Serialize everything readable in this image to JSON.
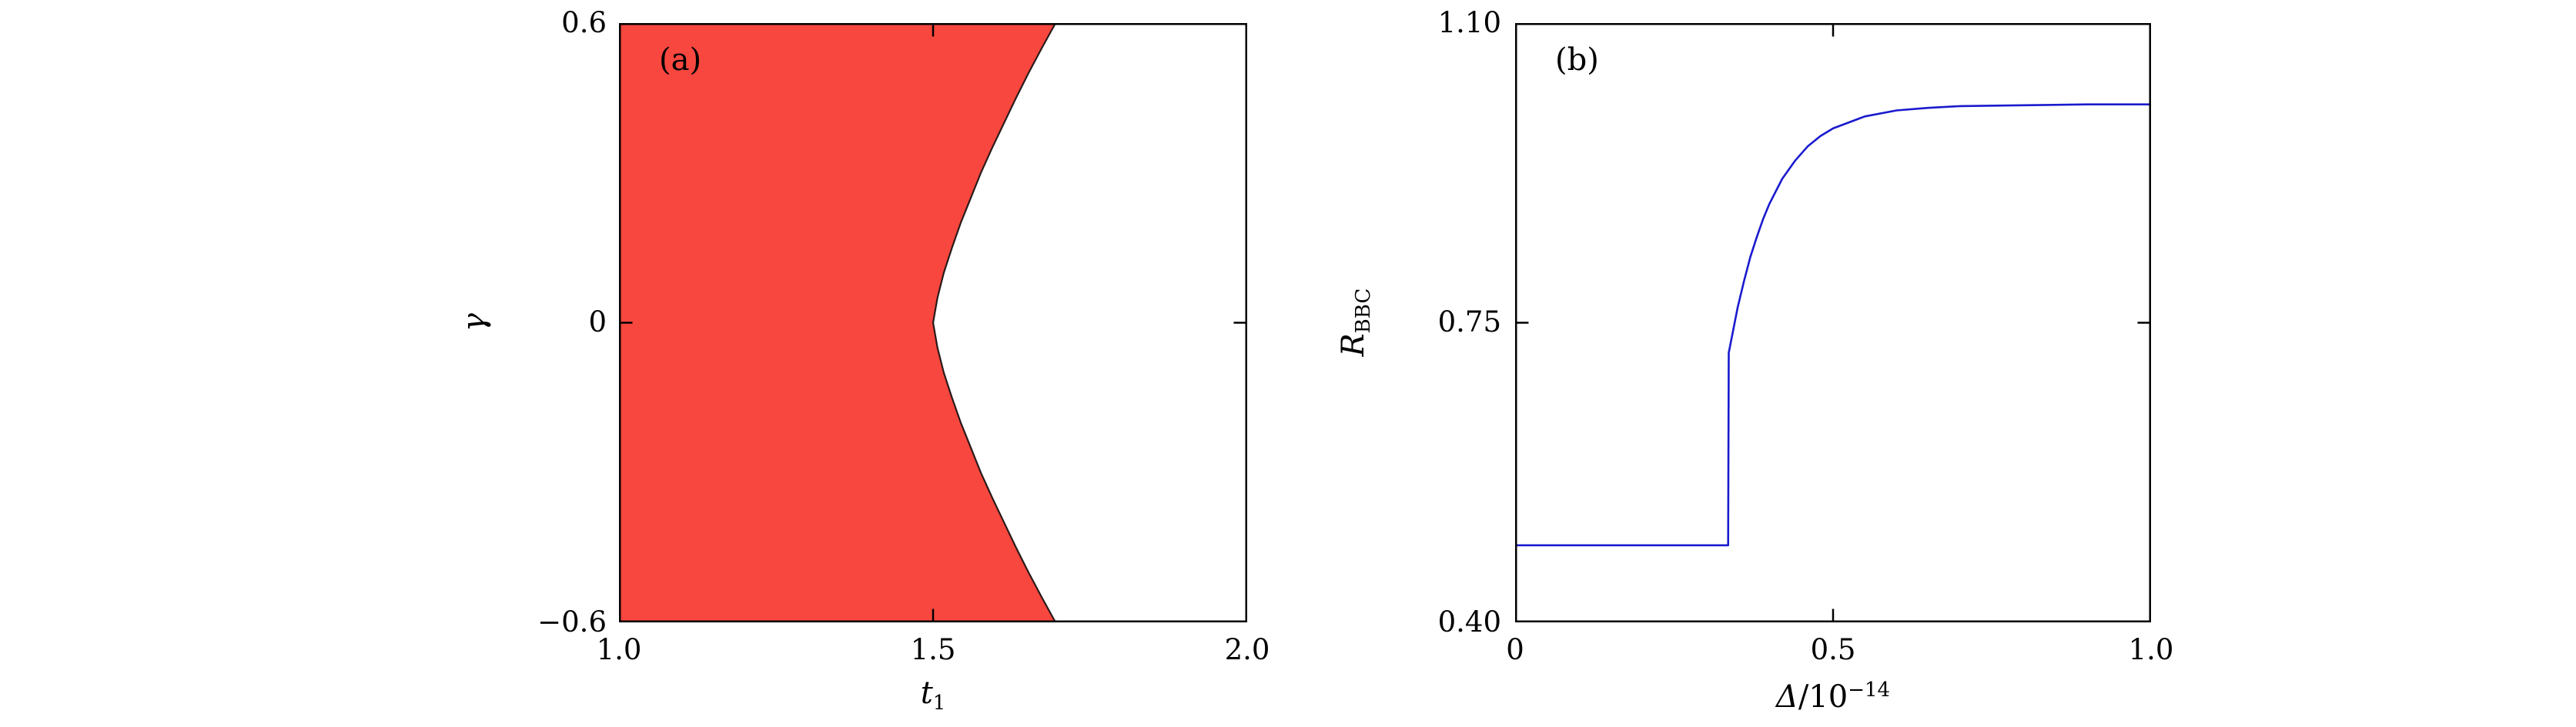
{
  "figure": {
    "background": "#ffffff"
  },
  "panels": {
    "a": {
      "label": "(a)",
      "xlabel": {
        "base": "t",
        "sub": "1"
      },
      "ylabel": {
        "base": "γ"
      },
      "xticks": [
        "1.0",
        "1.5",
        "2.0"
      ],
      "yticks": [
        "0.6",
        "0",
        "−0.6"
      ]
    },
    "b": {
      "label": "(b)",
      "xlabel": {
        "base": "Δ",
        "mid": "/10",
        "sup": "−14"
      },
      "ylabel": {
        "base": "R",
        "sub": "BBC"
      },
      "xticks": [
        "0",
        "0.5",
        "1.0"
      ],
      "yticks": [
        "1.10",
        "0.75",
        "0.40"
      ]
    }
  },
  "chart_data": [
    {
      "type": "area",
      "title": "",
      "panel_label": "(a)",
      "xlabel": "t_1",
      "ylabel": "gamma",
      "xlim": [
        1.0,
        2.0
      ],
      "ylim": [
        -0.6,
        0.6
      ],
      "xticks": [
        1.0,
        1.5,
        2.0
      ],
      "yticks": [
        -0.6,
        0,
        0.6
      ],
      "grid": false,
      "legend": "none",
      "fill_color": "#f8473e",
      "boundary_color": "#2a1a1a",
      "frame_color": "#000000",
      "region": "red region filled from left edge t1=1.0 up to boundary curve, pinched at (t1=1.5, gamma=0)",
      "boundary_gamma": [
        0.6,
        0.55,
        0.5,
        0.45,
        0.4,
        0.35,
        0.3,
        0.25,
        0.2,
        0.15,
        0.1,
        0.05,
        0.0,
        -0.05,
        -0.1,
        -0.15,
        -0.2,
        -0.25,
        -0.3,
        -0.35,
        -0.4,
        -0.45,
        -0.5,
        -0.55,
        -0.6
      ],
      "boundary_t1": [
        1.695,
        1.673,
        1.652,
        1.632,
        1.613,
        1.594,
        1.576,
        1.56,
        1.544,
        1.53,
        1.517,
        1.507,
        1.5,
        1.507,
        1.517,
        1.53,
        1.544,
        1.56,
        1.576,
        1.594,
        1.613,
        1.632,
        1.652,
        1.673,
        1.695
      ]
    },
    {
      "type": "line",
      "title": "",
      "panel_label": "(b)",
      "xlabel": "Delta/10^-14",
      "ylabel": "R_BBC",
      "xlim": [
        0,
        1.0
      ],
      "ylim": [
        0.4,
        1.1
      ],
      "xticks": [
        0,
        0.5,
        1.0
      ],
      "yticks": [
        0.4,
        0.75,
        1.1
      ],
      "grid": false,
      "legend": "none",
      "line_color": "#1a1ace",
      "frame_color": "#000000",
      "x": [
        0.0,
        0.05,
        0.1,
        0.15,
        0.2,
        0.25,
        0.3,
        0.335,
        0.336,
        0.35,
        0.36,
        0.37,
        0.38,
        0.39,
        0.4,
        0.42,
        0.44,
        0.46,
        0.48,
        0.5,
        0.55,
        0.6,
        0.65,
        0.7,
        0.8,
        0.9,
        1.0
      ],
      "y": [
        0.49,
        0.49,
        0.49,
        0.49,
        0.49,
        0.49,
        0.49,
        0.49,
        0.715,
        0.768,
        0.799,
        0.827,
        0.85,
        0.871,
        0.889,
        0.918,
        0.939,
        0.956,
        0.968,
        0.977,
        0.991,
        0.998,
        1.001,
        1.003,
        1.004,
        1.005,
        1.005
      ]
    }
  ]
}
